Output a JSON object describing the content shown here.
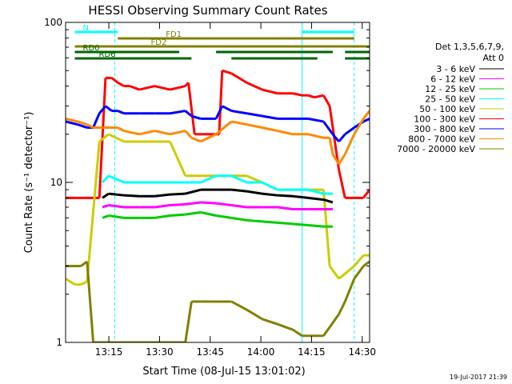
{
  "chart_data": {
    "type": "line",
    "title": "HESSI Observing Summary Count Rates",
    "xlabel": "Start Time (08-Jul-15 13:01:02)",
    "ylabel": "Count Rate (s⁻¹ detector⁻¹)",
    "y_scale": "log",
    "ylim": [
      1,
      100
    ],
    "xlim_minutes_after_13_00": [
      1.0,
      42.0
    ],
    "x_ticks": [
      {
        "label": "13:15",
        "minutes": 15
      },
      {
        "label": "13:30",
        "minutes": 30
      },
      {
        "label": "13:45",
        "minutes": 45
      },
      {
        "label": "14:00",
        "minutes": 60
      },
      {
        "label": "14:15",
        "minutes": 75
      },
      {
        "label": "14:30",
        "minutes": 90
      }
    ],
    "y_ticks": [
      {
        "label": "1",
        "value": 1
      },
      {
        "label": "10",
        "value": 10
      },
      {
        "label": "100",
        "value": 100
      }
    ],
    "legend": {
      "placement": "right",
      "header": [
        "Det 1,3,5,6,7,9,",
        "Att 0"
      ],
      "entries": [
        {
          "label": "3 - 6 keV",
          "color": "#000000"
        },
        {
          "label": "6 - 12 keV",
          "color": "#ff00ff"
        },
        {
          "label": "12 - 25 keV",
          "color": "#00cc00"
        },
        {
          "label": "25 - 50 keV",
          "color": "#00ffff"
        },
        {
          "label": "50 - 100 keV",
          "color": "#cccc00"
        },
        {
          "label": "100 - 300 keV",
          "color": "#ff0000"
        },
        {
          "label": "300 - 800 keV",
          "color": "#0000ff"
        },
        {
          "label": "800 - 7000 keV",
          "color": "#ff8800"
        },
        {
          "label": "7000 - 20000 keV",
          "color": "#808000"
        }
      ]
    },
    "flag_bars": [
      {
        "label": "N",
        "color": "#00ffff",
        "segments": [
          [
            4,
            18
          ],
          [
            78,
            95
          ]
        ]
      },
      {
        "label": "FD1",
        "color": "#808000",
        "segments": [
          [
            18,
            95
          ]
        ]
      },
      {
        "label": "FD2",
        "color": "#808000",
        "segments": [
          [
            4,
            100
          ]
        ]
      },
      {
        "label": "RD0",
        "color": "#006600",
        "segments": [
          [
            4,
            38
          ],
          [
            50,
            88
          ],
          [
            92,
            100
          ]
        ]
      },
      {
        "label": "RD6",
        "color": "#006600",
        "segments": [
          [
            4,
            42
          ],
          [
            55,
            83
          ],
          [
            92,
            100
          ]
        ]
      }
    ],
    "vertical_markers": [
      {
        "minutes": 17,
        "color": "#00ffff",
        "style": "dashed"
      },
      {
        "minutes": 78,
        "color": "#00ffff",
        "style": "solid"
      },
      {
        "minutes": 95,
        "color": "#00ffff",
        "style": "dashed"
      }
    ],
    "series": [
      {
        "color": "#ff0000",
        "x": [
          1,
          8,
          12,
          14,
          16,
          18,
          20,
          22,
          25,
          30,
          35,
          40,
          41,
          43,
          45,
          48,
          50,
          51,
          52,
          55,
          60,
          65,
          70,
          75,
          78,
          80,
          82,
          85,
          87,
          90,
          92,
          95,
          98,
          100
        ],
        "y": [
          8,
          8,
          8,
          45,
          45,
          42,
          40,
          40,
          38,
          40,
          38,
          40,
          42,
          20,
          20,
          20,
          20,
          20,
          50,
          48,
          42,
          38,
          36,
          36,
          35,
          35,
          34,
          35,
          30,
          12,
          8,
          8,
          8,
          9
        ]
      },
      {
        "color": "#0000ff",
        "x": [
          1,
          5,
          8,
          10,
          12,
          14,
          16,
          18,
          20,
          25,
          30,
          35,
          40,
          42,
          45,
          50,
          52,
          55,
          60,
          65,
          70,
          75,
          80,
          85,
          88,
          90,
          92,
          95,
          98,
          100
        ],
        "y": [
          24,
          23,
          22,
          22,
          27,
          30,
          28,
          28,
          27,
          27,
          27,
          27,
          28,
          26,
          25,
          25,
          30,
          28,
          27,
          26,
          25,
          25,
          25,
          24,
          20,
          18,
          20,
          22,
          24,
          25
        ]
      },
      {
        "color": "#ff8800",
        "x": [
          1,
          5,
          8,
          10,
          12,
          14,
          16,
          18,
          20,
          25,
          30,
          35,
          40,
          42,
          45,
          50,
          55,
          60,
          65,
          70,
          75,
          80,
          85,
          87,
          88,
          90,
          92,
          95,
          98,
          100
        ],
        "y": [
          25,
          24,
          23,
          22,
          22,
          22,
          22,
          22,
          21,
          20,
          21,
          20,
          21,
          19,
          18,
          20,
          24,
          23,
          22,
          21,
          20,
          20,
          19,
          19,
          15,
          13,
          15,
          20,
          25,
          28
        ]
      },
      {
        "color": "#cccc00",
        "x": [
          1,
          4,
          6,
          8,
          12,
          15,
          20,
          25,
          30,
          35,
          40,
          45,
          50,
          55,
          60,
          65,
          70,
          75,
          80,
          85,
          87,
          90,
          95,
          98,
          100
        ],
        "y": [
          2.5,
          2.3,
          2.3,
          2.4,
          18,
          20,
          18,
          18,
          18,
          18,
          11,
          11,
          11,
          11,
          11,
          10,
          9,
          9,
          9,
          9,
          3,
          2.5,
          3,
          3.5,
          3.5
        ]
      },
      {
        "color": "#00ffff",
        "x": [
          13,
          15,
          20,
          25,
          30,
          35,
          40,
          45,
          50,
          55,
          60,
          65,
          70,
          75,
          80,
          85,
          88
        ],
        "y": [
          10,
          11,
          10,
          10,
          10,
          10,
          10,
          10,
          11,
          11,
          10,
          10,
          9,
          9,
          9,
          8.5,
          8.5
        ]
      },
      {
        "color": "#000000",
        "x": [
          13,
          15,
          20,
          25,
          30,
          35,
          40,
          45,
          50,
          55,
          60,
          65,
          70,
          75,
          80,
          85,
          88
        ],
        "y": [
          8,
          8.5,
          8.3,
          8.2,
          8.2,
          8.4,
          8.5,
          9,
          9,
          9,
          8.8,
          8.5,
          8.3,
          8.2,
          8.0,
          7.8,
          7.5
        ]
      },
      {
        "color": "#ff00ff",
        "x": [
          13,
          15,
          20,
          25,
          30,
          35,
          40,
          45,
          50,
          55,
          60,
          65,
          70,
          75,
          80,
          85,
          88
        ],
        "y": [
          7,
          7.2,
          7,
          7,
          7,
          7.2,
          7.3,
          7.5,
          7.4,
          7.2,
          7,
          7,
          7,
          6.8,
          6.8,
          6.8,
          6.8
        ]
      },
      {
        "color": "#00cc00",
        "x": [
          13,
          15,
          20,
          25,
          30,
          35,
          40,
          45,
          50,
          55,
          60,
          65,
          70,
          75,
          80,
          85,
          88
        ],
        "y": [
          6,
          6.2,
          6,
          6,
          6,
          6.2,
          6.3,
          6.5,
          6.2,
          6.0,
          5.8,
          5.7,
          5.6,
          5.5,
          5.4,
          5.3,
          5.3
        ]
      },
      {
        "color": "#808000",
        "x": [
          1,
          4,
          6,
          8,
          10,
          40,
          42,
          45,
          48,
          55,
          60,
          65,
          70,
          75,
          78,
          80,
          85,
          90,
          92,
          95,
          98,
          100
        ],
        "y": [
          3,
          3,
          3,
          3.2,
          1,
          1,
          1.8,
          1.8,
          1.8,
          1.8,
          1.6,
          1.4,
          1.3,
          1.2,
          1.1,
          1.1,
          1.1,
          1.5,
          1.8,
          2.5,
          3,
          3.2
        ]
      }
    ]
  },
  "footer_timestamp": "19-Jul-2017 21:39"
}
